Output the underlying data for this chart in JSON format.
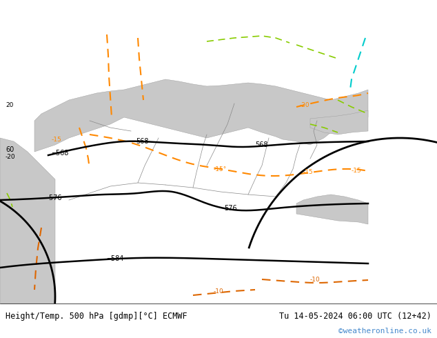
{
  "title_left": "Height/Temp. 500 hPa [gdmp][°C] ECMWF",
  "title_right": "Tu 14-05-2024 06:00 UTC (12+42)",
  "watermark": "©weatheronline.co.uk",
  "bg_color": "#c8f0a0",
  "land_color": "#c8f0a0",
  "sea_color": "#d0d0d0",
  "footer_bg": "#ffffff",
  "text_color": "#000000",
  "title_fontsize": 9,
  "watermark_color": "#4488cc",
  "figsize": [
    6.34,
    4.9
  ],
  "dpi": 100
}
